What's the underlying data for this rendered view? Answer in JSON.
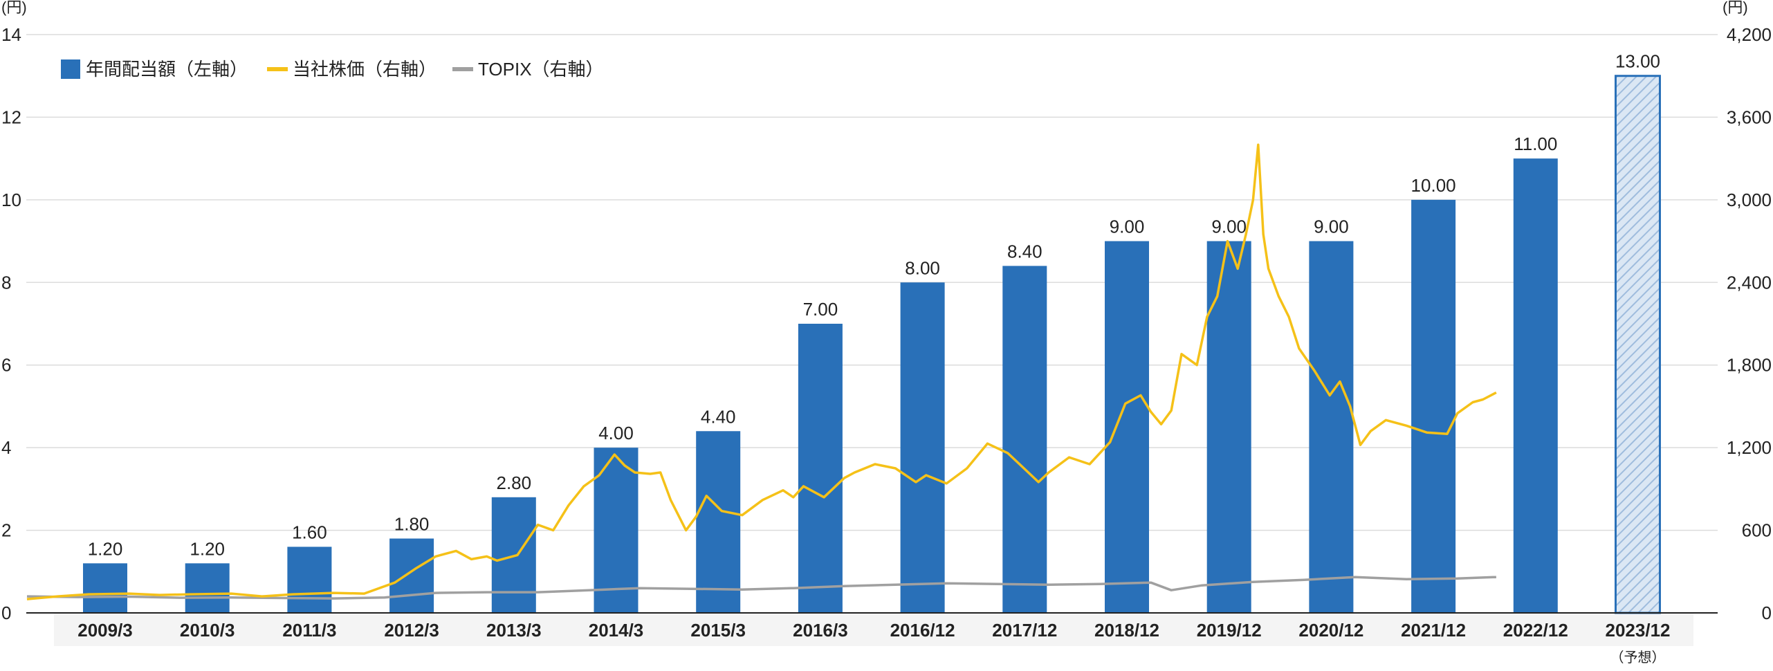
{
  "chart_data": {
    "type": "bar",
    "left_axis_unit": "(円)",
    "right_axis_unit": "(円)",
    "left_ylim": [
      0,
      14
    ],
    "left_ticks": [
      0,
      2,
      4,
      6,
      8,
      10,
      12,
      14
    ],
    "right_ylim": [
      0,
      4200
    ],
    "right_ticks": [
      "0",
      "600",
      "1,200",
      "1,800",
      "2,400",
      "3,000",
      "3,600",
      "4,200"
    ],
    "grid": true,
    "legend_position": "top-left",
    "categories": [
      "2009/3",
      "2010/3",
      "2011/3",
      "2012/3",
      "2013/3",
      "2014/3",
      "2015/3",
      "2016/3",
      "2016/12",
      "2017/12",
      "2018/12",
      "2019/12",
      "2020/12",
      "2021/12",
      "2022/12",
      "2023/12"
    ],
    "forecast_note": "（予想）",
    "series": [
      {
        "name": "年間配当額（左軸）",
        "axis": "left",
        "color": "#2970b8",
        "values": [
          1.2,
          1.2,
          1.6,
          1.8,
          2.8,
          4.0,
          4.4,
          7.0,
          8.0,
          8.4,
          9.0,
          9.0,
          9.0,
          10.0,
          11.0,
          13.0
        ],
        "labels": [
          "1.20",
          "1.20",
          "1.60",
          "1.80",
          "2.80",
          "4.00",
          "4.40",
          "7.00",
          "8.00",
          "8.40",
          "9.00",
          "9.00",
          "9.00",
          "10.00",
          "11.00",
          "13.00"
        ],
        "forecast_index": 15
      },
      {
        "name": "当社株価（右軸）",
        "axis": "right",
        "type": "line",
        "color": "#f5c118",
        "x": [
          0,
          0.3,
          0.6,
          1.0,
          1.3,
          1.6,
          2.0,
          2.3,
          2.6,
          3.0,
          3.3,
          3.6,
          3.8,
          4.0,
          4.2,
          4.35,
          4.5,
          4.6,
          4.8,
          5.0,
          5.15,
          5.3,
          5.45,
          5.6,
          5.75,
          5.85,
          5.95,
          6.1,
          6.2,
          6.3,
          6.45,
          6.55,
          6.65,
          6.8,
          7.0,
          7.2,
          7.4,
          7.5,
          7.6,
          7.8,
          8.0,
          8.1,
          8.3,
          8.5,
          8.7,
          8.8,
          9.0,
          9.2,
          9.4,
          9.6,
          9.7,
          9.9,
          10.0,
          10.2,
          10.4,
          10.6,
          10.75,
          10.9,
          11.0,
          11.1,
          11.2,
          11.3,
          11.45,
          11.55,
          11.65,
          11.75,
          11.85,
          11.93,
          12.0,
          12.05,
          12.1,
          12.15,
          12.25,
          12.35,
          12.45,
          12.6,
          12.75,
          12.85,
          12.95,
          13.05,
          13.15,
          13.3,
          13.5,
          13.7,
          13.9,
          14.0,
          14.15,
          14.25,
          14.38
        ],
        "values": [
          100,
          120,
          135,
          140,
          130,
          135,
          140,
          120,
          135,
          145,
          140,
          220,
          320,
          410,
          450,
          390,
          410,
          380,
          420,
          640,
          600,
          780,
          920,
          1000,
          1150,
          1070,
          1020,
          1010,
          1020,
          820,
          600,
          700,
          850,
          740,
          710,
          820,
          890,
          840,
          920,
          840,
          980,
          1020,
          1080,
          1050,
          950,
          1000,
          940,
          1050,
          1230,
          1160,
          1090,
          950,
          1020,
          1130,
          1080,
          1240,
          1520,
          1580,
          1460,
          1370,
          1470,
          1880,
          1800,
          2150,
          2300,
          2700,
          2500,
          2750,
          3000,
          3400,
          2750,
          2500,
          2300,
          2150,
          1920,
          1760,
          1580,
          1680,
          1500,
          1220,
          1320,
          1400,
          1360,
          1310,
          1300,
          1450,
          1530,
          1550,
          1600
        ]
      },
      {
        "name": "TOPIX（右軸）",
        "axis": "right",
        "type": "line",
        "color": "#a0a0a0",
        "x": [
          0,
          0.5,
          1.0,
          1.5,
          2.0,
          2.5,
          3.0,
          3.5,
          4.0,
          4.5,
          5.0,
          5.5,
          6.0,
          6.5,
          7.0,
          7.5,
          8.0,
          8.5,
          9.0,
          9.5,
          10.0,
          10.5,
          11.0,
          11.2,
          11.5,
          12.0,
          12.5,
          13.0,
          13.5,
          14.0,
          14.38
        ],
        "values": [
          120,
          115,
          118,
          110,
          112,
          108,
          105,
          112,
          145,
          150,
          150,
          165,
          180,
          175,
          170,
          180,
          195,
          205,
          215,
          210,
          205,
          210,
          220,
          165,
          200,
          225,
          240,
          260,
          245,
          250,
          260
        ]
      }
    ]
  }
}
